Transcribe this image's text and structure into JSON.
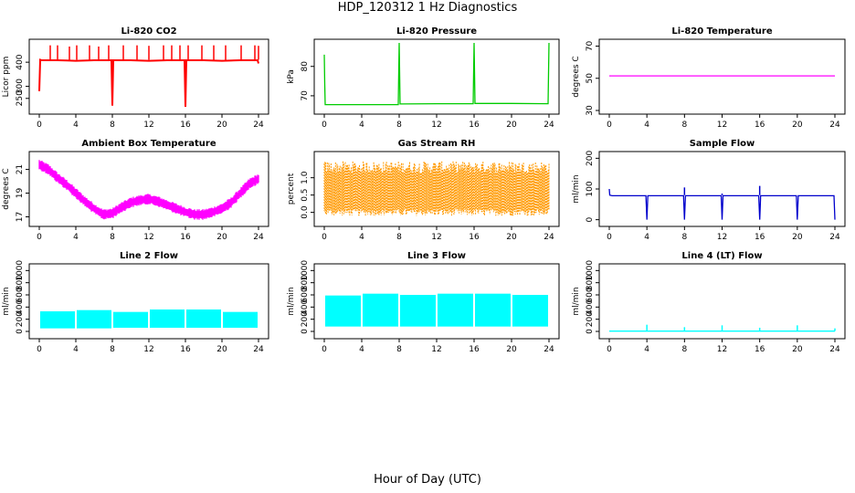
{
  "figure": {
    "title": "HDP_120312  1 Hz Diagnostics",
    "xlabel": "Hour of Day (UTC)"
  },
  "chart_data": [
    {
      "type": "line",
      "title": "Li-820 CO2",
      "ylabel": "Licor ppm",
      "color": "#ff0000",
      "xlim": [
        0,
        24
      ],
      "ylim": [
        200,
        480
      ],
      "xticks": [
        0,
        4,
        8,
        12,
        16,
        20,
        24
      ],
      "yticks": [
        250,
        300,
        400
      ],
      "x": [
        0,
        0.1,
        0.25,
        2,
        3,
        4,
        6,
        7.9,
        8,
        8.1,
        10,
        12,
        14,
        15.9,
        16,
        16.1,
        18,
        20,
        22,
        23.9,
        24
      ],
      "y": [
        280,
        410,
        408,
        408,
        407,
        406,
        408,
        408,
        220,
        408,
        408,
        406,
        408,
        408,
        215,
        408,
        408,
        406,
        408,
        408,
        395
      ],
      "spikes": [
        {
          "x": 1.2,
          "y": 470
        },
        {
          "x": 2.0,
          "y": 470
        },
        {
          "x": 3.3,
          "y": 465
        },
        {
          "x": 4.1,
          "y": 470
        },
        {
          "x": 5.5,
          "y": 470
        },
        {
          "x": 6.5,
          "y": 465
        },
        {
          "x": 7.6,
          "y": 470
        },
        {
          "x": 9.2,
          "y": 470
        },
        {
          "x": 10.7,
          "y": 470
        },
        {
          "x": 12.0,
          "y": 468
        },
        {
          "x": 13.6,
          "y": 470
        },
        {
          "x": 14.5,
          "y": 470
        },
        {
          "x": 15.4,
          "y": 470
        },
        {
          "x": 16.3,
          "y": 470
        },
        {
          "x": 17.8,
          "y": 470
        },
        {
          "x": 19.1,
          "y": 470
        },
        {
          "x": 20.4,
          "y": 470
        },
        {
          "x": 22.1,
          "y": 470
        },
        {
          "x": 23.6,
          "y": 470
        },
        {
          "x": 24.0,
          "y": 468
        }
      ]
    },
    {
      "type": "line",
      "title": "Li-820 Pressure",
      "ylabel": "kPa",
      "color": "#00cc00",
      "xlim": [
        0,
        24
      ],
      "ylim": [
        65,
        88
      ],
      "xticks": [
        0,
        4,
        8,
        12,
        16,
        20,
        24
      ],
      "yticks": [
        70,
        80
      ],
      "x": [
        0,
        0.05,
        0.1,
        0.3,
        4,
        7.9,
        8,
        8.1,
        12,
        15.9,
        16,
        16.1,
        20,
        23.9,
        24
      ],
      "y": [
        84,
        74,
        67,
        67,
        67,
        67,
        88,
        67.2,
        67.3,
        67.3,
        88,
        67.4,
        67.4,
        67.3,
        88
      ]
    },
    {
      "type": "line",
      "title": "Li-820 Temperature",
      "ylabel": "degrees C",
      "color": "#ff00ff",
      "xlim": [
        0,
        24
      ],
      "ylim": [
        30,
        72
      ],
      "xticks": [
        0,
        4,
        8,
        12,
        16,
        20,
        24
      ],
      "yticks": [
        30,
        50,
        70
      ],
      "x": [
        0,
        24
      ],
      "y": [
        51.5,
        51.5
      ]
    },
    {
      "type": "area",
      "title": "Ambient Box Temperature",
      "ylabel": "degrees C",
      "color": "#ff00ff",
      "xlim": [
        0,
        24
      ],
      "ylim": [
        16.5,
        22.2
      ],
      "xticks": [
        0,
        4,
        8,
        12,
        16,
        20,
        24
      ],
      "yticks": [
        17,
        19,
        21
      ],
      "x": [
        0,
        1,
        2,
        3,
        4,
        5,
        6,
        7,
        8,
        9,
        10,
        11,
        12,
        13,
        14,
        15,
        16,
        17,
        18,
        19,
        20,
        21,
        22,
        23,
        24
      ],
      "y": [
        21.4,
        21.0,
        20.3,
        19.7,
        19.0,
        18.3,
        17.7,
        17.2,
        17.3,
        17.8,
        18.2,
        18.4,
        18.5,
        18.3,
        18.0,
        17.7,
        17.4,
        17.2,
        17.2,
        17.4,
        17.7,
        18.2,
        19.0,
        19.8,
        20.2
      ],
      "band": 0.45
    },
    {
      "type": "area",
      "title": "Gas Stream RH",
      "ylabel": "percent",
      "color": "#ff9900",
      "xlim": [
        0,
        24
      ],
      "ylim": [
        -0.3,
        1.65
      ],
      "xticks": [
        0,
        4,
        8,
        12,
        16,
        20,
        24
      ],
      "yticks": [
        0.0,
        0.5,
        1.0
      ],
      "yticklabels": [
        "0.0",
        "0.5",
        "1.0"
      ],
      "x": [
        0,
        24
      ],
      "ylow": [
        0.0,
        0.0
      ],
      "yhigh": [
        1.3,
        1.3
      ]
    },
    {
      "type": "line",
      "title": "Sample Flow",
      "ylabel": "ml/min",
      "color": "#0000cc",
      "xlim": [
        0,
        24
      ],
      "ylim": [
        -10,
        210
      ],
      "xticks": [
        0,
        4,
        8,
        12,
        16,
        20,
        24
      ],
      "yticks": [
        0,
        100,
        200
      ],
      "x": [
        0,
        0.05,
        0.3,
        3.9,
        4,
        4.1,
        7.9,
        8,
        8.1,
        11.9,
        12,
        12.1,
        15.9,
        16,
        16.1,
        19.9,
        20,
        20.1,
        23.9,
        24
      ],
      "y": [
        100,
        80,
        78,
        78,
        0,
        78,
        78,
        0,
        78,
        78,
        0,
        78,
        78,
        0,
        78,
        78,
        0,
        78,
        78,
        0
      ],
      "spikes": [
        {
          "x": 8.0,
          "y": 105
        },
        {
          "x": 16.0,
          "y": 110
        },
        {
          "x": 12.0,
          "y": 85
        }
      ]
    },
    {
      "type": "area",
      "title": "Line 2 Flow",
      "ylabel": "ml/min",
      "color": "#00ffff",
      "xlim": [
        0,
        24
      ],
      "ylim": [
        -60,
        1050
      ],
      "xticks": [
        0,
        4,
        8,
        12,
        16,
        20,
        24
      ],
      "yticks": [
        0,
        200,
        400,
        600,
        800,
        1000
      ],
      "segments": [
        {
          "x0": 0,
          "x1": 4,
          "low": 50,
          "high": 330
        },
        {
          "x0": 4,
          "x1": 8,
          "low": 50,
          "high": 350
        },
        {
          "x0": 8,
          "x1": 12,
          "low": 60,
          "high": 320
        },
        {
          "x0": 12,
          "x1": 16,
          "low": 60,
          "high": 360
        },
        {
          "x0": 16,
          "x1": 20,
          "low": 60,
          "high": 360
        },
        {
          "x0": 20,
          "x1": 24,
          "low": 60,
          "high": 320
        }
      ]
    },
    {
      "type": "area",
      "title": "Line 3 Flow",
      "ylabel": "ml/min",
      "color": "#00ffff",
      "xlim": [
        0,
        24
      ],
      "ylim": [
        -60,
        1050
      ],
      "xticks": [
        0,
        4,
        8,
        12,
        16,
        20,
        24
      ],
      "yticks": [
        0,
        200,
        400,
        600,
        800,
        1000
      ],
      "segments": [
        {
          "x0": 0,
          "x1": 4,
          "low": 80,
          "high": 590
        },
        {
          "x0": 4,
          "x1": 8,
          "low": 80,
          "high": 620
        },
        {
          "x0": 8,
          "x1": 12,
          "low": 80,
          "high": 600
        },
        {
          "x0": 12,
          "x1": 16,
          "low": 80,
          "high": 620
        },
        {
          "x0": 16,
          "x1": 20,
          "low": 80,
          "high": 620
        },
        {
          "x0": 20,
          "x1": 24,
          "low": 80,
          "high": 600
        }
      ]
    },
    {
      "type": "line",
      "title": "Line 4 (LT) Flow",
      "ylabel": "ml/min",
      "color": "#00ffff",
      "xlim": [
        0,
        24
      ],
      "ylim": [
        -60,
        1050
      ],
      "xticks": [
        0,
        4,
        8,
        12,
        16,
        20,
        24
      ],
      "yticks": [
        0,
        200,
        400,
        600,
        800,
        1000
      ],
      "x": [
        0,
        24
      ],
      "y": [
        5,
        5
      ],
      "spikes": [
        {
          "x": 4.0,
          "y": 110
        },
        {
          "x": 8.0,
          "y": 70
        },
        {
          "x": 12.0,
          "y": 100
        },
        {
          "x": 16.0,
          "y": 60
        },
        {
          "x": 20.0,
          "y": 100
        },
        {
          "x": 24.0,
          "y": 50
        }
      ]
    }
  ]
}
